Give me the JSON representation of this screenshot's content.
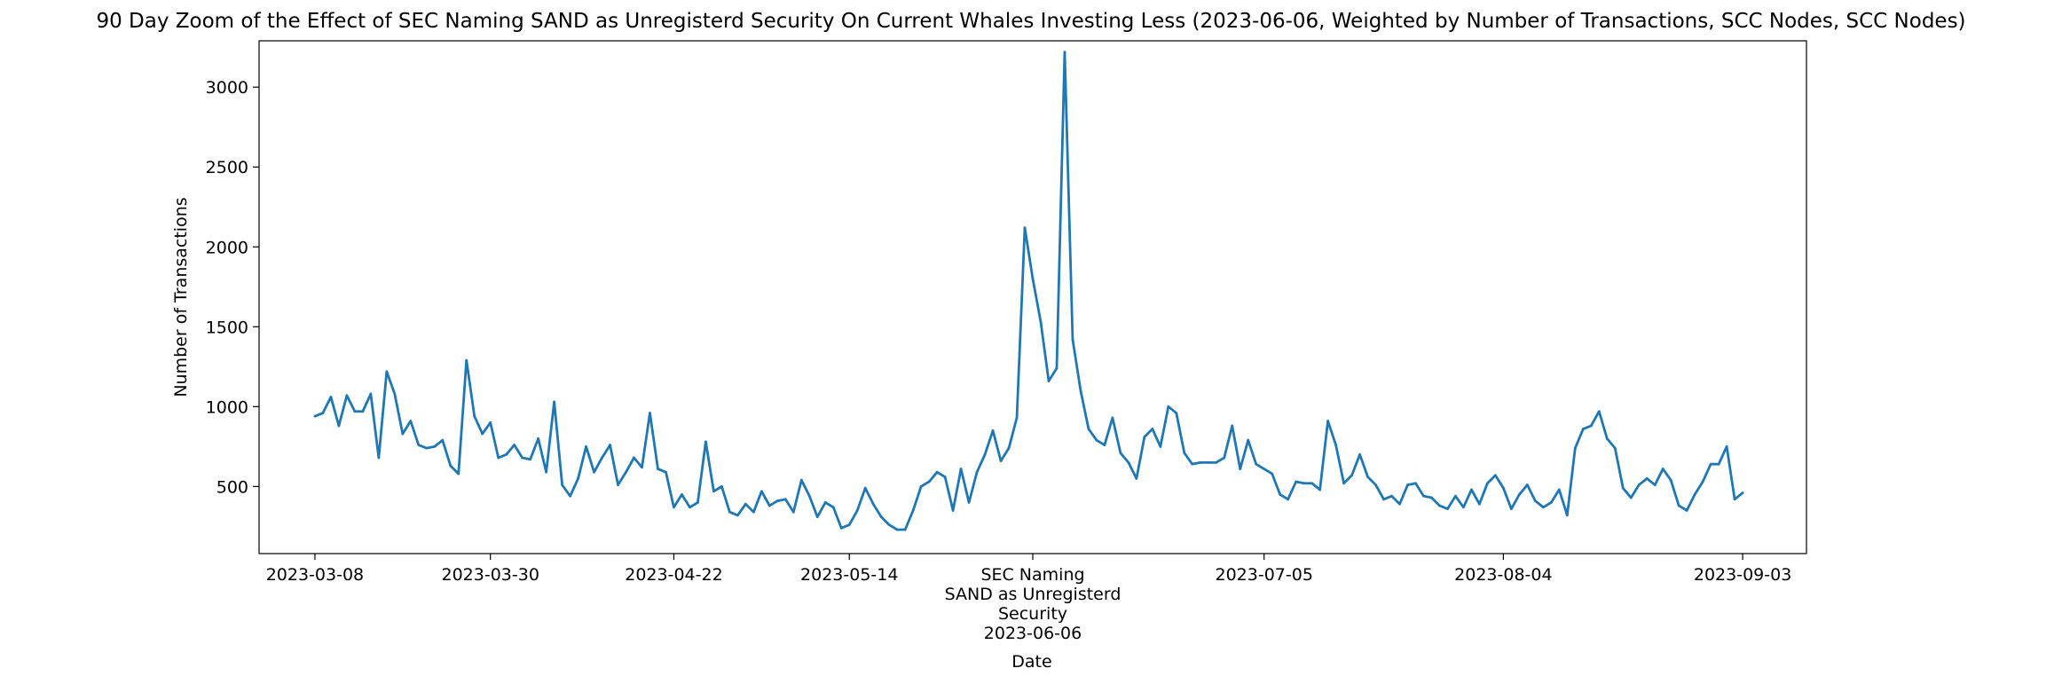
{
  "chart_data": {
    "type": "line",
    "title": "90 Day Zoom of the Effect of SEC Naming SAND as Unregisterd Security On Current Whales Investing Less (2023-06-06, Weighted by Number of Transactions, SCC Nodes, SCC Nodes)",
    "xlabel": "Date",
    "ylabel": "Number of Transactions",
    "ylim": [
      80,
      3290
    ],
    "xlim": [
      "2023-02-29",
      "2023-09-11"
    ],
    "grid": false,
    "colors": {
      "line": "#1f77b4",
      "axes": "#000000",
      "background": "#ffffff"
    },
    "x_ticks": [
      {
        "date": "2023-03-08",
        "lines": [
          "2023-03-08"
        ]
      },
      {
        "date": "2023-03-30",
        "lines": [
          "2023-03-30"
        ]
      },
      {
        "date": "2023-04-22",
        "lines": [
          "2023-04-22"
        ]
      },
      {
        "date": "2023-05-14",
        "lines": [
          "2023-05-14"
        ]
      },
      {
        "date": "2023-06-06",
        "lines": [
          "SEC Naming",
          "SAND as Unregisterd",
          "Security",
          "2023-06-06"
        ]
      },
      {
        "date": "2023-07-05",
        "lines": [
          "2023-07-05"
        ]
      },
      {
        "date": "2023-08-04",
        "lines": [
          "2023-08-04"
        ]
      },
      {
        "date": "2023-09-03",
        "lines": [
          "2023-09-03"
        ]
      }
    ],
    "y_ticks": [
      500,
      1000,
      1500,
      2000,
      2500,
      3000
    ],
    "series": [
      {
        "start_date": "2023-03-08",
        "values": [
          940,
          960,
          1060,
          880,
          1070,
          970,
          970,
          1080,
          680,
          1220,
          1080,
          830,
          910,
          760,
          740,
          750,
          790,
          630,
          580,
          1290,
          940,
          830,
          900,
          680,
          700,
          760,
          680,
          670,
          800,
          590,
          1030,
          510,
          440,
          550,
          750,
          590,
          680,
          760,
          510,
          590,
          680,
          620,
          960,
          610,
          590,
          370,
          450,
          370,
          400,
          780,
          470,
          500,
          340,
          320,
          390,
          340,
          470,
          380,
          410,
          420,
          340,
          540,
          440,
          310,
          400,
          370,
          240,
          260,
          350,
          490,
          390,
          310,
          260,
          230,
          230,
          350,
          500,
          530,
          590,
          560,
          350,
          610,
          400,
          590,
          700,
          850,
          660,
          740,
          930,
          2120,
          1800,
          1530,
          1160,
          1240,
          3220,
          1420,
          1100,
          860,
          790,
          760,
          930,
          710,
          650,
          550,
          810,
          860,
          750,
          1000,
          960,
          710,
          640,
          650,
          650,
          650,
          680,
          880,
          610,
          790,
          640,
          610,
          580,
          450,
          420,
          530,
          520,
          520,
          480,
          910,
          760,
          520,
          570,
          700,
          560,
          510,
          420,
          440,
          390,
          510,
          520,
          440,
          430,
          380,
          360,
          440,
          370,
          480,
          390,
          520,
          570,
          490,
          360,
          450,
          510,
          410,
          370,
          400,
          480,
          320,
          740,
          860,
          880,
          970,
          800,
          740,
          490,
          430,
          510,
          550,
          510,
          610,
          540,
          380,
          350,
          450,
          530,
          640,
          640,
          750,
          420,
          460
        ]
      }
    ]
  }
}
